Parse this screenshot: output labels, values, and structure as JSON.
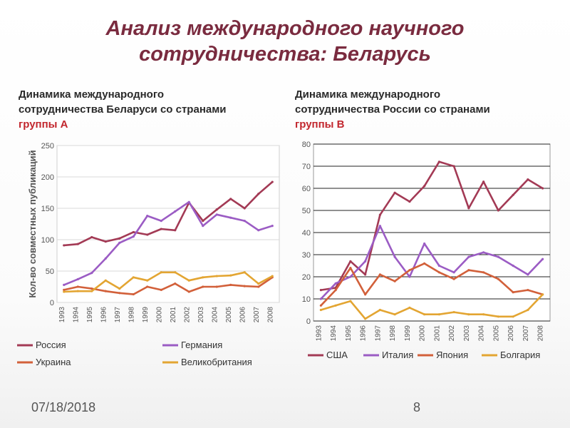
{
  "slide": {
    "title_line1": "Анализ международного научного",
    "title_line2": "сотрудничества: Беларусь",
    "date": "07/18/2018",
    "page": "8"
  },
  "left_heading": {
    "line1": "Динамика международного",
    "line2": "сотрудничества Беларуси со странами",
    "line3": "группы А"
  },
  "right_heading": {
    "line1": "Динамика международного",
    "line2": "сотрудничества России со странами",
    "line3": "группы В"
  },
  "chart_data": [
    {
      "type": "line",
      "ylabel": "Кол-во совместных публикаций",
      "ylim": [
        0,
        250
      ],
      "yticks": [
        "0",
        "50",
        "100",
        "150",
        "200",
        "250"
      ],
      "grid": true,
      "legend_position": "bottom",
      "x": [
        "1993",
        "1994",
        "1995",
        "1996",
        "1997",
        "1998",
        "1999",
        "2000",
        "2001",
        "2002",
        "2003",
        "2004",
        "2005",
        "2006",
        "2007",
        "2008"
      ],
      "series": [
        {
          "name": "Россия",
          "color": "#a33a55",
          "values": [
            91,
            93,
            104,
            97,
            102,
            112,
            108,
            117,
            115,
            159,
            130,
            148,
            165,
            150,
            173,
            192
          ]
        },
        {
          "name": "Германия",
          "color": "#9b5cc4",
          "values": [
            28,
            37,
            47,
            70,
            95,
            105,
            138,
            130,
            145,
            160,
            122,
            140,
            135,
            130,
            115,
            122
          ]
        },
        {
          "name": "Украина",
          "color": "#d2603a",
          "values": [
            20,
            25,
            22,
            18,
            15,
            13,
            25,
            20,
            30,
            17,
            25,
            25,
            28,
            26,
            25,
            40
          ]
        },
        {
          "name": "Великобритания",
          "color": "#e3a532",
          "values": [
            17,
            18,
            18,
            35,
            22,
            40,
            35,
            48,
            48,
            35,
            40,
            42,
            43,
            48,
            30,
            42
          ]
        }
      ]
    },
    {
      "type": "line",
      "ylabel": "",
      "ylim": [
        0,
        80
      ],
      "yticks": [
        "0",
        "10",
        "20",
        "30",
        "40",
        "50",
        "60",
        "70",
        "80"
      ],
      "grid": true,
      "legend_position": "bottom",
      "x": [
        "1993",
        "1994",
        "1995",
        "1996",
        "1997",
        "1998",
        "1999",
        "2000",
        "2001",
        "2002",
        "2003",
        "2004",
        "2005",
        "2006",
        "2007",
        "2008"
      ],
      "series": [
        {
          "name": "США",
          "color": "#a33a55",
          "values": [
            14,
            15,
            27,
            21,
            48,
            58,
            54,
            61,
            72,
            70,
            51,
            63,
            50,
            57,
            64,
            60
          ]
        },
        {
          "name": "Италия",
          "color": "#9b5cc4",
          "values": [
            10,
            17,
            20,
            27,
            43,
            29,
            20,
            35,
            25,
            22,
            29,
            31,
            29,
            25,
            21,
            28
          ]
        },
        {
          "name": "Япония",
          "color": "#d2603a",
          "values": [
            7,
            14,
            24,
            12,
            21,
            18,
            23,
            26,
            22,
            19,
            23,
            22,
            19,
            13,
            14,
            12
          ]
        },
        {
          "name": "Болгария",
          "color": "#e3a532",
          "values": [
            5,
            7,
            9,
            1,
            5,
            3,
            6,
            3,
            3,
            4,
            3,
            3,
            2,
            2,
            5,
            12
          ]
        }
      ]
    }
  ]
}
